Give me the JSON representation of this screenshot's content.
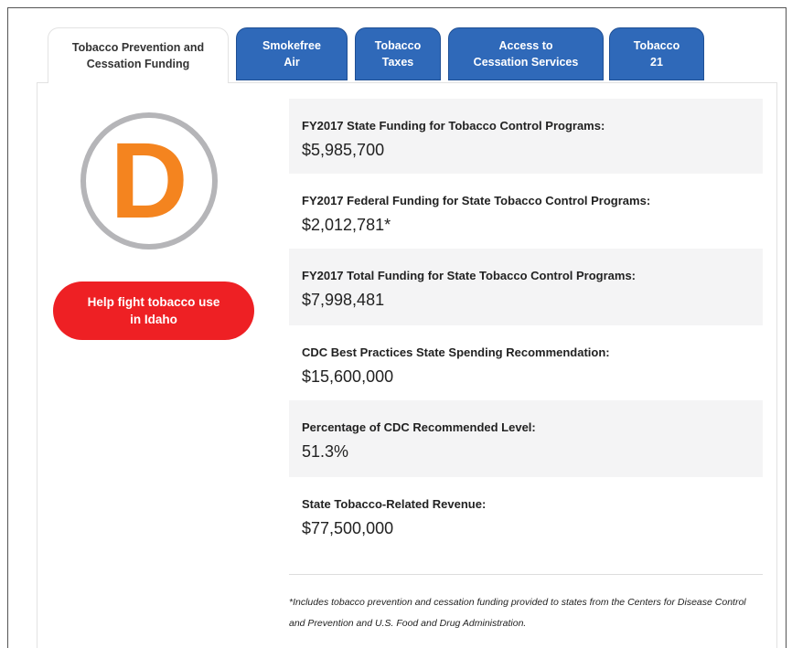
{
  "tabs": [
    {
      "lines": [
        "Tobacco Prevention and",
        "Cessation Funding"
      ]
    },
    {
      "lines": [
        "Smokefree",
        "Air"
      ]
    },
    {
      "lines": [
        "Tobacco",
        "Taxes"
      ]
    },
    {
      "lines": [
        "Access to",
        "Cessation Services"
      ]
    },
    {
      "lines": [
        "Tobacco",
        "21"
      ]
    }
  ],
  "grade": "D",
  "button": {
    "lines": [
      "Help fight tobacco use",
      "in Idaho"
    ]
  },
  "items": [
    {
      "label": "FY2017 State Funding for Tobacco Control Programs:",
      "value": "$5,985,700"
    },
    {
      "label": "FY2017 Federal Funding for State Tobacco Control Programs:",
      "value": "$2,012,781*"
    },
    {
      "label": "FY2017 Total Funding for State Tobacco Control Programs:",
      "value": "$7,998,481"
    },
    {
      "label": "CDC Best Practices State Spending Recommendation:",
      "value": "$15,600,000"
    },
    {
      "label": "Percentage of CDC Recommended Level:",
      "value": "51.3%"
    },
    {
      "label": "State Tobacco-Related Revenue:",
      "value": "$77,500,000"
    }
  ],
  "footnote": "*Includes tobacco prevention and cessation funding provided to states from the Centers for Disease Control and Prevention and U.S. Food and Drug Administration."
}
